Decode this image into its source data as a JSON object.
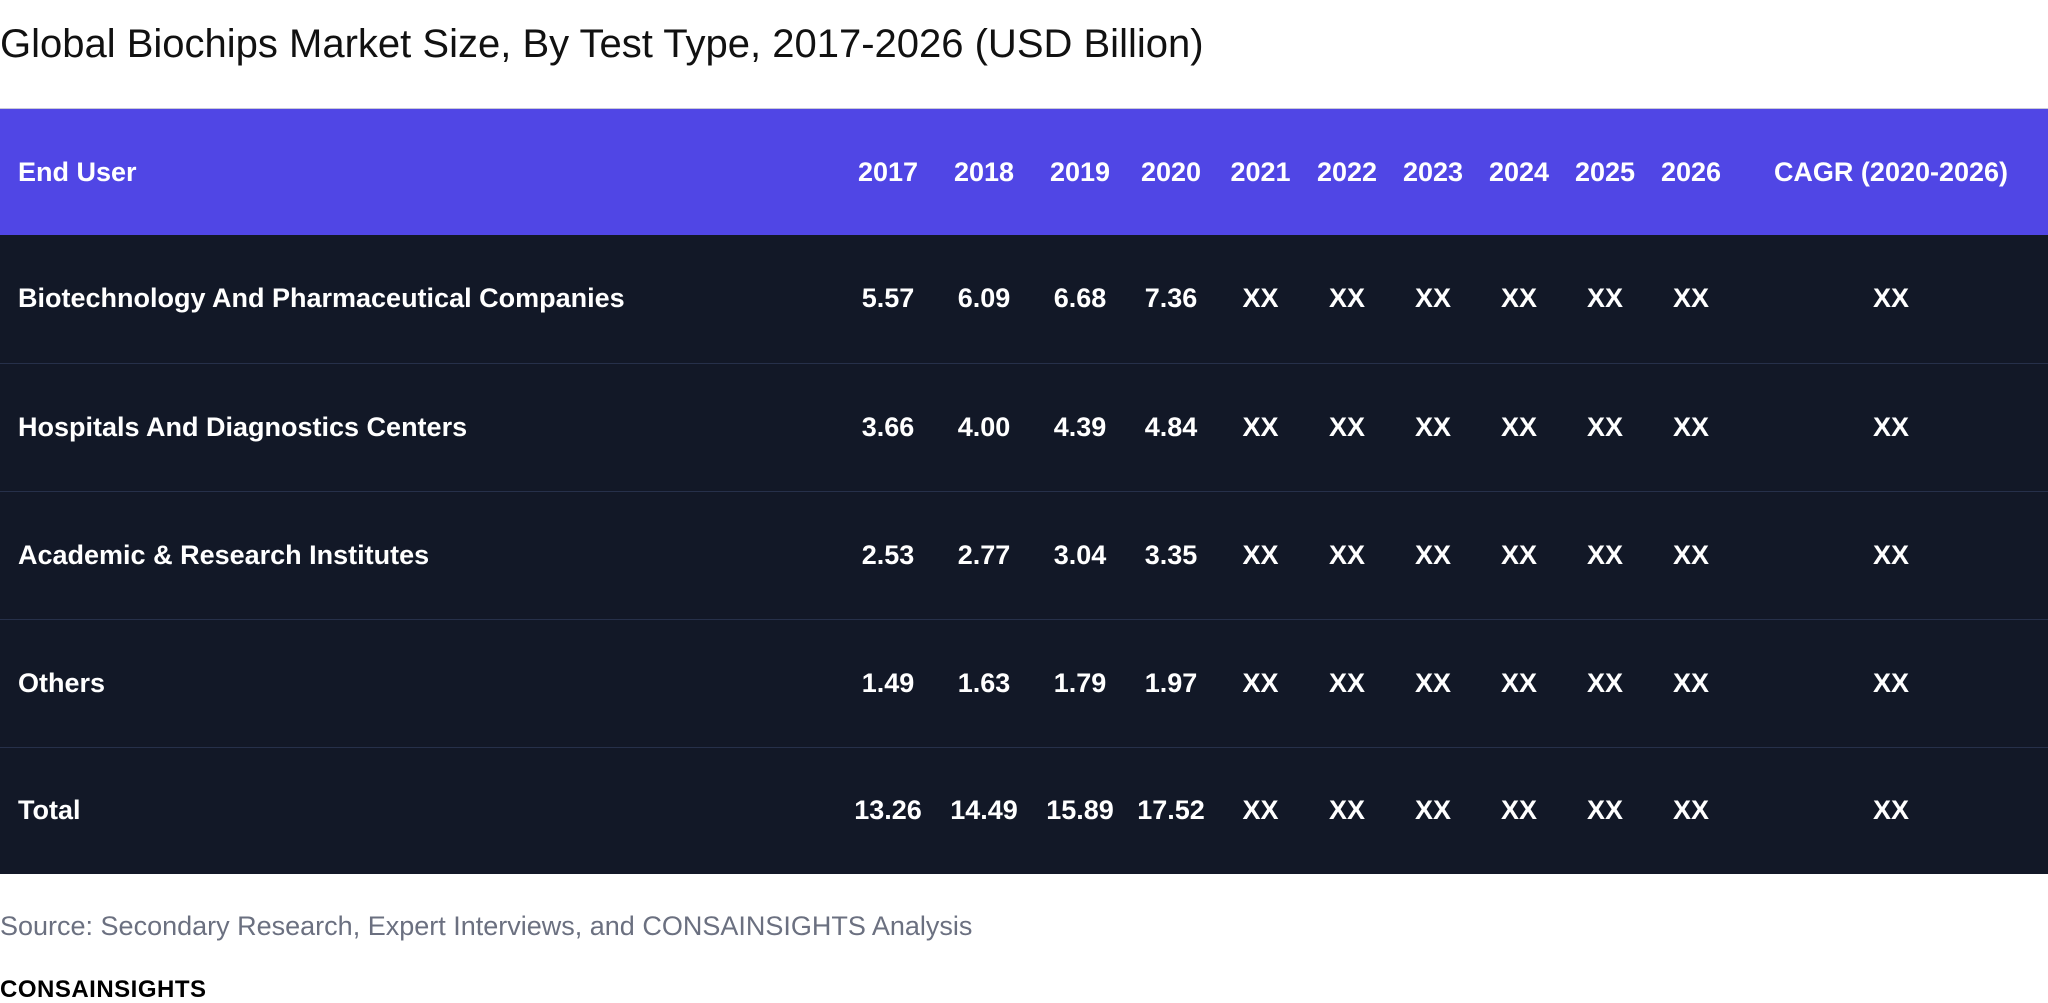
{
  "title": "Global Biochips Market Size, By Test Type, 2017-2026 (USD Billion)",
  "chart_data": {
    "type": "table",
    "title": "Global Biochips Market Size, By Test Type, 2017-2026 (USD Billion)",
    "columns": [
      "End User",
      "2017",
      "2018",
      "2019",
      "2020",
      "2021",
      "2022",
      "2023",
      "2024",
      "2025",
      "2026",
      "CAGR (2020-2026)"
    ],
    "rows": [
      [
        "Biotechnology And Pharmaceutical Companies",
        "5.57",
        "6.09",
        "6.68",
        "7.36",
        "XX",
        "XX",
        "XX",
        "XX",
        "XX",
        "XX",
        "XX"
      ],
      [
        "Hospitals And Diagnostics Centers",
        "3.66",
        "4.00",
        "4.39",
        "4.84",
        "XX",
        "XX",
        "XX",
        "XX",
        "XX",
        "XX",
        "XX"
      ],
      [
        "Academic & Research Institutes",
        "2.53",
        "2.77",
        "3.04",
        "3.35",
        "XX",
        "XX",
        "XX",
        "XX",
        "XX",
        "XX",
        "XX"
      ],
      [
        "Others",
        "1.49",
        "1.63",
        "1.79",
        "1.97",
        "XX",
        "XX",
        "XX",
        "XX",
        "XX",
        "XX",
        "XX"
      ],
      [
        "Total",
        "13.26",
        "14.49",
        "15.89",
        "17.52",
        "XX",
        "XX",
        "XX",
        "XX",
        "XX",
        "XX",
        "XX"
      ]
    ]
  },
  "source": "Source: Secondary Research, Expert Interviews, and CONSAINSIGHTS Analysis",
  "brand": "CONSAINSIGHTS",
  "colors": {
    "header_bg": "#5046e5",
    "row_bg": "#121827",
    "text_light": "#ffffff",
    "source_text": "#6b7080"
  }
}
